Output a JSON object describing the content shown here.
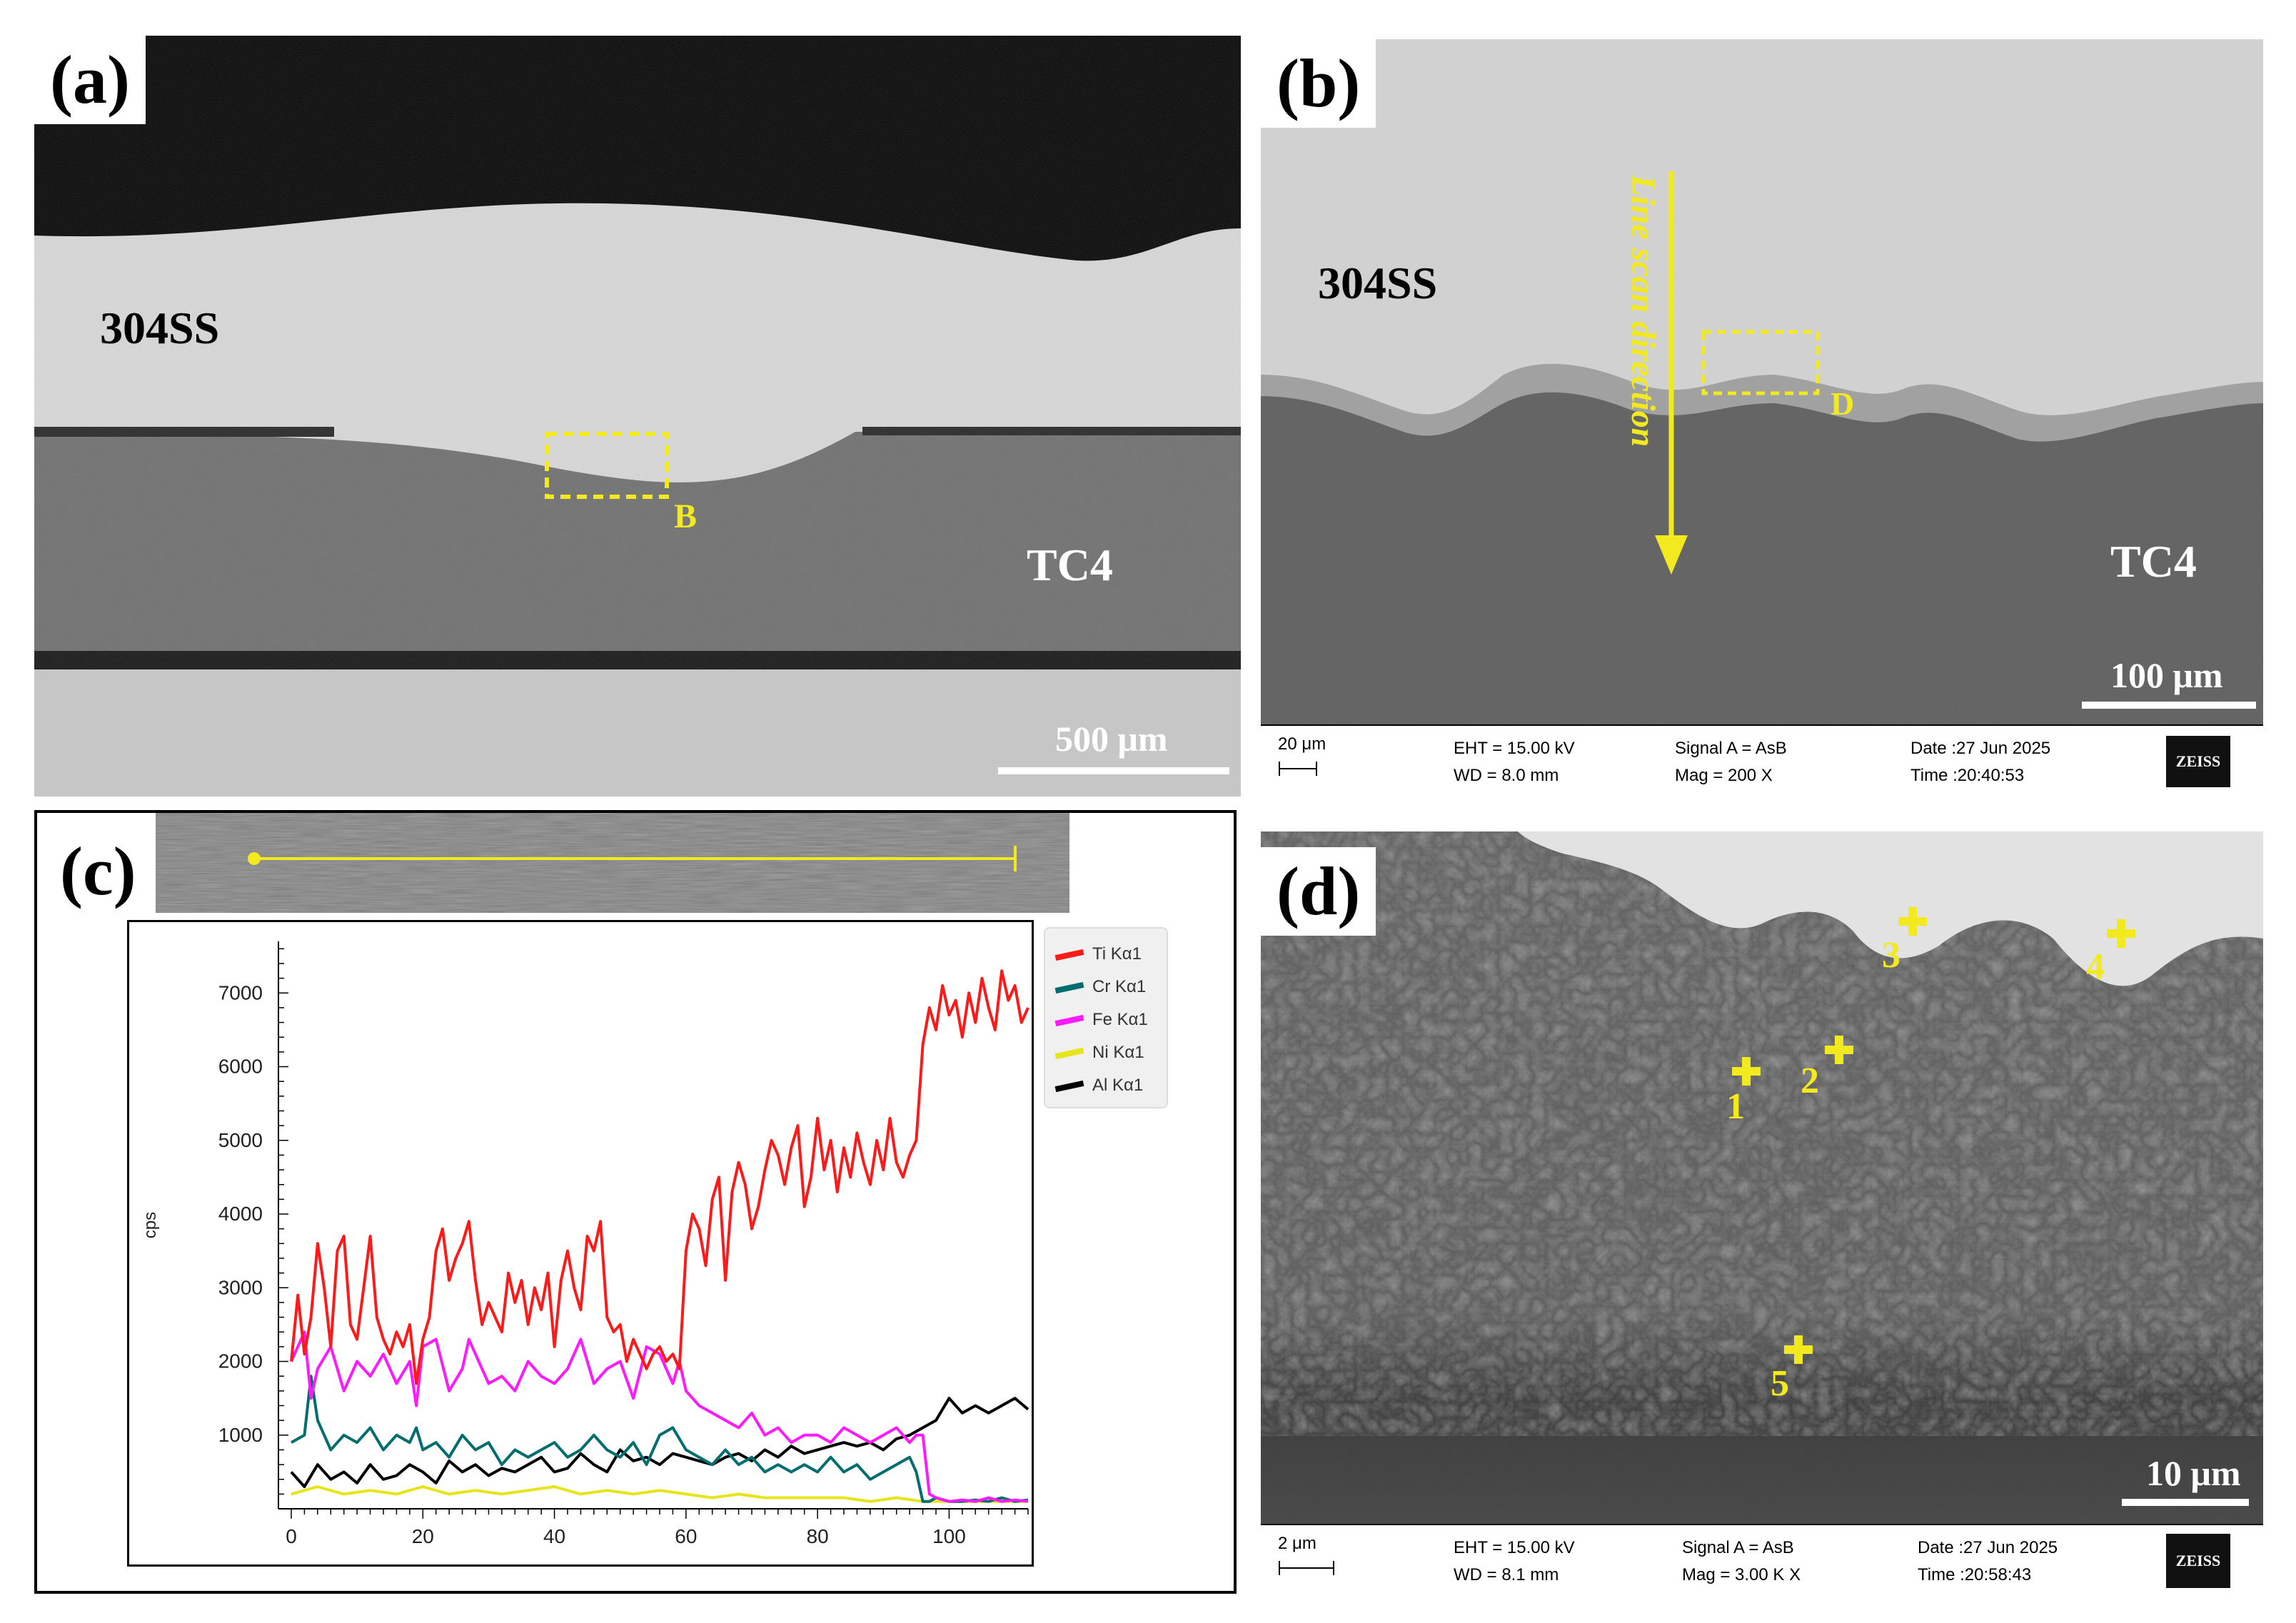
{
  "panels": {
    "a": {
      "label": "(a)",
      "top_material": "304SS",
      "bottom_material": "TC4",
      "box_label": "B",
      "scale_text": "500 μm"
    },
    "b": {
      "label": "(b)",
      "top_material": "304SS",
      "bottom_material": "TC4",
      "arrow_text": "Line scan direction",
      "box_label": "D",
      "scale_text": "100 μm",
      "info": {
        "scale": "20 μm",
        "eht": "EHT = 15.00 kV",
        "wd": "WD = 8.0 mm",
        "signal": "Signal A = AsB",
        "mag": "Mag =    200 X",
        "date": "Date :27 Jun 2025",
        "time": "Time :20:40:53",
        "logo": "ZEISS"
      }
    },
    "c": {
      "label": "(c)"
    },
    "d": {
      "label": "(d)",
      "points": [
        "1",
        "2",
        "3",
        "4",
        "5"
      ],
      "scale_text": "10 μm",
      "info": {
        "scale": "2 μm",
        "eht": "EHT = 15.00 kV",
        "wd": "WD = 8.1 mm",
        "signal": "Signal A = AsB",
        "mag": "Mag =     3.00 K X",
        "date": "Date :27 Jun 2025",
        "time": "Time :20:58:43",
        "logo": "ZEISS"
      }
    }
  },
  "chart_data": {
    "type": "line",
    "title": "",
    "xlabel": "",
    "ylabel": "cps",
    "xlim": [
      0,
      112
    ],
    "ylim": [
      0,
      7700
    ],
    "x_ticks": [
      0,
      20,
      40,
      60,
      80,
      100
    ],
    "y_ticks": [
      1000,
      2000,
      3000,
      4000,
      5000,
      6000,
      7000
    ],
    "legend_position": "top-right",
    "series": [
      {
        "name": "Ti Kα1",
        "color": "#ff1a1a",
        "x": [
          0,
          1,
          2,
          3,
          4,
          5,
          6,
          7,
          8,
          9,
          10,
          11,
          12,
          13,
          14,
          15,
          16,
          17,
          18,
          19,
          20,
          21,
          22,
          23,
          24,
          25,
          26,
          27,
          28,
          29,
          30,
          31,
          32,
          33,
          34,
          35,
          36,
          37,
          38,
          39,
          40,
          41,
          42,
          43,
          44,
          45,
          46,
          47,
          48,
          49,
          50,
          51,
          52,
          53,
          54,
          55,
          56,
          57,
          58,
          59,
          60,
          61,
          62,
          63,
          64,
          65,
          66,
          67,
          68,
          69,
          70,
          71,
          72,
          73,
          74,
          75,
          76,
          77,
          78,
          79,
          80,
          81,
          82,
          83,
          84,
          85,
          86,
          87,
          88,
          89,
          90,
          91,
          92,
          93,
          94,
          95,
          96,
          97,
          98,
          99,
          100,
          101,
          102,
          103,
          104,
          105,
          106,
          107,
          108,
          109,
          110,
          111,
          112
        ],
        "values": [
          2000,
          2900,
          2100,
          2600,
          3600,
          3000,
          2200,
          3500,
          3700,
          2500,
          2300,
          3000,
          3700,
          2600,
          2300,
          2100,
          2400,
          2200,
          2500,
          1700,
          2300,
          2600,
          3500,
          3800,
          3100,
          3400,
          3600,
          3900,
          3100,
          2500,
          2800,
          2600,
          2400,
          3200,
          2800,
          3100,
          2500,
          3000,
          2700,
          3200,
          2200,
          3100,
          3500,
          3000,
          2700,
          3700,
          3500,
          3900,
          2600,
          2400,
          2500,
          2000,
          2300,
          2100,
          1900,
          2100,
          2200,
          2000,
          2100,
          1900,
          3500,
          4000,
          3800,
          3300,
          4200,
          4500,
          3100,
          4300,
          4700,
          4400,
          3800,
          4100,
          4600,
          5000,
          4800,
          4400,
          4900,
          5200,
          4100,
          4500,
          5300,
          4600,
          5000,
          4300,
          4900,
          4500,
          5100,
          4700,
          4400,
          5000,
          4600,
          5300,
          4700,
          4500,
          4800,
          5000,
          6300,
          6800,
          6500,
          7100,
          6700,
          6900,
          6400,
          7000,
          6600,
          7200,
          6800,
          6500,
          7300,
          6900,
          7100,
          6600,
          6800
        ]
      },
      {
        "name": "Cr Kα1",
        "color": "#006e6e",
        "x": [
          0,
          2,
          3,
          4,
          6,
          8,
          10,
          12,
          14,
          16,
          18,
          19,
          20,
          22,
          24,
          26,
          28,
          30,
          32,
          34,
          36,
          38,
          40,
          42,
          44,
          46,
          48,
          50,
          52,
          54,
          56,
          58,
          60,
          62,
          64,
          66,
          68,
          70,
          72,
          74,
          76,
          78,
          80,
          82,
          84,
          86,
          88,
          90,
          92,
          94,
          95,
          96,
          97,
          98,
          100,
          102,
          104,
          106,
          108,
          110,
          112
        ],
        "values": [
          900,
          1000,
          1800,
          1200,
          800,
          1000,
          900,
          1100,
          800,
          1000,
          900,
          1100,
          800,
          900,
          700,
          1000,
          800,
          900,
          600,
          800,
          700,
          800,
          900,
          700,
          800,
          1000,
          800,
          700,
          900,
          600,
          1000,
          1100,
          800,
          700,
          600,
          800,
          600,
          700,
          500,
          600,
          500,
          600,
          500,
          700,
          500,
          600,
          400,
          500,
          600,
          700,
          500,
          100,
          100,
          150,
          100,
          100,
          120,
          100,
          150,
          100,
          120
        ]
      },
      {
        "name": "Fe Kα1",
        "color": "#ff1aff",
        "x": [
          0,
          2,
          3,
          4,
          6,
          8,
          10,
          12,
          14,
          16,
          18,
          19,
          20,
          22,
          24,
          26,
          27,
          28,
          30,
          32,
          34,
          36,
          38,
          40,
          42,
          44,
          46,
          48,
          50,
          52,
          54,
          56,
          58,
          59,
          60,
          62,
          64,
          66,
          68,
          70,
          72,
          74,
          76,
          78,
          80,
          82,
          84,
          86,
          88,
          90,
          92,
          94,
          95,
          96,
          97,
          98,
          100,
          102,
          104,
          106,
          108,
          110,
          112
        ],
        "values": [
          2000,
          2400,
          1500,
          1900,
          2200,
          1600,
          2000,
          1800,
          2100,
          1700,
          2000,
          1400,
          2200,
          2300,
          1600,
          1900,
          2300,
          2100,
          1700,
          1800,
          1600,
          2000,
          1800,
          1700,
          1900,
          2300,
          1700,
          1900,
          2000,
          1500,
          2200,
          2100,
          1700,
          2000,
          1600,
          1400,
          1300,
          1200,
          1100,
          1300,
          1000,
          1100,
          900,
          1000,
          1000,
          900,
          1100,
          1000,
          900,
          1000,
          1100,
          900,
          1000,
          1000,
          200,
          150,
          100,
          120,
          100,
          150,
          100,
          120,
          100
        ]
      },
      {
        "name": "Ni Kα1",
        "color": "#e5e51a",
        "x": [
          0,
          4,
          8,
          12,
          16,
          20,
          24,
          28,
          32,
          36,
          40,
          44,
          48,
          52,
          56,
          60,
          64,
          68,
          72,
          76,
          80,
          84,
          88,
          92,
          96,
          100,
          104,
          108,
          112
        ],
        "values": [
          200,
          300,
          200,
          250,
          200,
          300,
          200,
          250,
          200,
          250,
          300,
          200,
          250,
          200,
          250,
          200,
          150,
          200,
          150,
          150,
          150,
          150,
          100,
          150,
          100,
          100,
          100,
          100,
          100
        ]
      },
      {
        "name": "Al Kα1",
        "color": "#000000",
        "x": [
          0,
          2,
          4,
          6,
          8,
          10,
          12,
          14,
          16,
          18,
          20,
          22,
          24,
          26,
          28,
          30,
          32,
          34,
          36,
          38,
          40,
          42,
          44,
          46,
          48,
          50,
          52,
          54,
          56,
          58,
          60,
          62,
          64,
          66,
          68,
          70,
          72,
          74,
          76,
          78,
          80,
          82,
          84,
          86,
          88,
          90,
          92,
          94,
          96,
          98,
          100,
          102,
          104,
          106,
          108,
          110,
          112
        ],
        "values": [
          500,
          300,
          600,
          400,
          500,
          350,
          600,
          400,
          450,
          600,
          500,
          350,
          650,
          500,
          600,
          450,
          550,
          500,
          600,
          700,
          500,
          550,
          750,
          600,
          500,
          800,
          650,
          700,
          600,
          750,
          700,
          650,
          600,
          700,
          750,
          650,
          800,
          700,
          850,
          750,
          800,
          850,
          900,
          850,
          900,
          800,
          950,
          1000,
          1100,
          1200,
          1500,
          1300,
          1400,
          1300,
          1400,
          1500,
          1350
        ]
      }
    ]
  }
}
